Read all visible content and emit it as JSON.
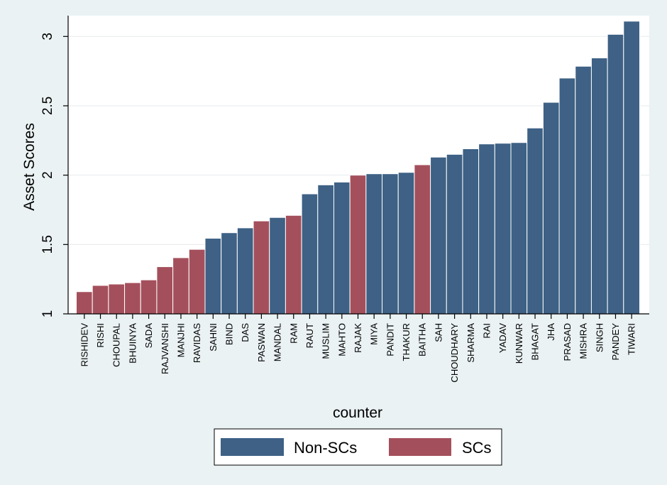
{
  "chart_data": {
    "type": "bar",
    "title": "",
    "xlabel": "counter",
    "ylabel": "Asset Scores",
    "ylim": [
      1,
      3.15
    ],
    "yticks": [
      1,
      1.5,
      2,
      2.5,
      3
    ],
    "ytick_labels": [
      "1",
      "1.5",
      "2",
      "2.5",
      "3"
    ],
    "grid": true,
    "legend_position": "bottom",
    "series": [
      {
        "name": "Non-SCs",
        "color": "#3e6185"
      },
      {
        "name": "SCs",
        "color": "#a4505c"
      }
    ],
    "categories": [
      "RISHIDEV",
      "RISHI",
      "CHOUPAL",
      "BHUINYA",
      "SADA",
      "RAJVANSHI",
      "MANJHI",
      "RAVIDAS",
      "SAHNI",
      "BIND",
      "DAS",
      "PASWAN",
      "MANDAL",
      "RAM",
      "RAUT",
      "MUSLIM",
      "MAHTO",
      "RAJAK",
      "MIYA",
      "PANDIT",
      "THAKUR",
      "BAITHA",
      "SAH",
      "CHOUDHARY",
      "SHARMA",
      "RAI",
      "YADAV",
      "KUNWAR",
      "BHAGAT",
      "JHA",
      "PRASAD",
      "MISHRA",
      "SINGH",
      "PANDEY",
      "TIWARI"
    ],
    "values": [
      1.16,
      1.205,
      1.215,
      1.225,
      1.245,
      1.34,
      1.405,
      1.465,
      1.545,
      1.585,
      1.62,
      1.67,
      1.695,
      1.71,
      1.865,
      1.93,
      1.95,
      2.0,
      2.01,
      2.01,
      2.02,
      2.075,
      2.13,
      2.15,
      2.19,
      2.225,
      2.23,
      2.235,
      2.34,
      2.525,
      2.7,
      2.785,
      2.845,
      3.015,
      3.11
    ],
    "groups": [
      "SCs",
      "SCs",
      "SCs",
      "SCs",
      "SCs",
      "SCs",
      "SCs",
      "SCs",
      "Non-SCs",
      "Non-SCs",
      "Non-SCs",
      "SCs",
      "Non-SCs",
      "SCs",
      "Non-SCs",
      "Non-SCs",
      "Non-SCs",
      "SCs",
      "Non-SCs",
      "Non-SCs",
      "Non-SCs",
      "SCs",
      "Non-SCs",
      "Non-SCs",
      "Non-SCs",
      "Non-SCs",
      "Non-SCs",
      "Non-SCs",
      "Non-SCs",
      "Non-SCs",
      "Non-SCs",
      "Non-SCs",
      "Non-SCs",
      "Non-SCs",
      "Non-SCs"
    ]
  }
}
